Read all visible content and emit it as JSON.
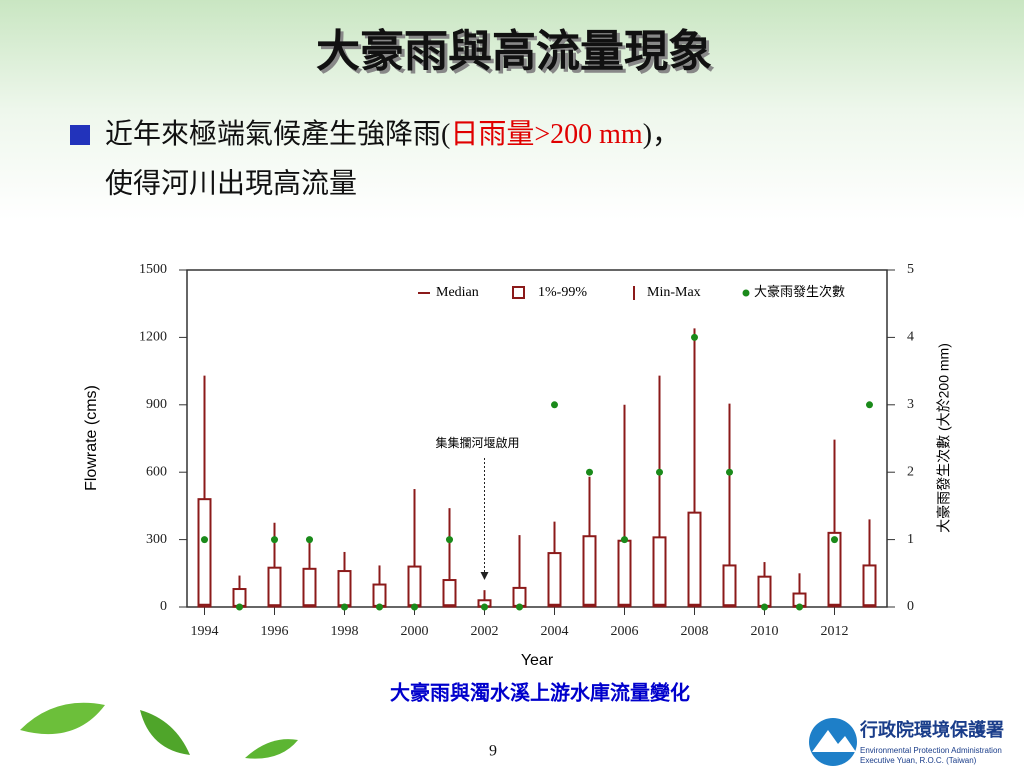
{
  "title": "大豪雨與高流量現象",
  "bullet": [
    "近年來極端氣候產生強降雨(",
    "日雨量>200 mm",
    ")，",
    "使得河川出現高流量"
  ],
  "caption": "大豪雨與濁水溪上游水庫流量變化",
  "page_number": "9",
  "logo": [
    "行政院環境保護署",
    "Environmental Protection Administration",
    "Executive Yuan, R.O.C. (Taiwan)"
  ],
  "chart_data": {
    "type": "box",
    "xlabel": "Year",
    "ylabel": "Flowrate (cms)",
    "y2label": "大豪雨發生次數 (大於200 mm)",
    "annotation": "集集攔河堰啟用",
    "annotation_x": 2002,
    "x": [
      1994,
      1995,
      1996,
      1997,
      1998,
      1999,
      2000,
      2001,
      2002,
      2003,
      2004,
      2005,
      2006,
      2007,
      2008,
      2009,
      2010,
      2011,
      2012,
      2013
    ],
    "xlim": [
      1993.5,
      2013.5
    ],
    "xticks": [
      1994,
      1996,
      1998,
      2000,
      2002,
      2004,
      2006,
      2008,
      2010,
      2012
    ],
    "ylim": [
      0,
      1500
    ],
    "yticks": [
      0,
      300,
      600,
      900,
      1200,
      1500
    ],
    "y2lim": [
      0,
      5
    ],
    "y2ticks": [
      0,
      1,
      2,
      3,
      4,
      5
    ],
    "series": [
      {
        "name": "Median",
        "color": "#8b1a1a",
        "values": [
          10,
          5,
          8,
          8,
          8,
          5,
          8,
          8,
          3,
          5,
          10,
          10,
          10,
          10,
          10,
          8,
          5,
          5,
          10,
          8
        ]
      },
      {
        "name": "1%-99%",
        "color": "#8b1a1a",
        "values": [
          [
            2,
            480
          ],
          [
            1,
            80
          ],
          [
            2,
            175
          ],
          [
            2,
            170
          ],
          [
            2,
            160
          ],
          [
            1,
            100
          ],
          [
            2,
            180
          ],
          [
            2,
            120
          ],
          [
            1,
            30
          ],
          [
            1,
            85
          ],
          [
            3,
            240
          ],
          [
            3,
            315
          ],
          [
            3,
            295
          ],
          [
            3,
            310
          ],
          [
            3,
            420
          ],
          [
            2,
            185
          ],
          [
            1,
            135
          ],
          [
            1,
            60
          ],
          [
            3,
            330
          ],
          [
            2,
            185
          ]
        ]
      },
      {
        "name": "Min-Max",
        "color": "#8b1a1a",
        "values": [
          [
            0,
            1030
          ],
          [
            0,
            140
          ],
          [
            0,
            375
          ],
          [
            0,
            300
          ],
          [
            0,
            245
          ],
          [
            0,
            185
          ],
          [
            0,
            525
          ],
          [
            0,
            440
          ],
          [
            0,
            75
          ],
          [
            0,
            320
          ],
          [
            0,
            380
          ],
          [
            0,
            580
          ],
          [
            0,
            900
          ],
          [
            0,
            1030
          ],
          [
            0,
            1240
          ],
          [
            0,
            905
          ],
          [
            0,
            200
          ],
          [
            0,
            150
          ],
          [
            0,
            745
          ],
          [
            0,
            390
          ]
        ]
      },
      {
        "name": "大豪雨發生次數",
        "color": "#1a8a1a",
        "axis": "y2",
        "values": [
          1,
          0,
          1,
          1,
          0,
          0,
          0,
          1,
          0,
          0,
          3,
          2,
          1,
          2,
          4,
          2,
          0,
          0,
          1,
          3
        ]
      }
    ]
  }
}
